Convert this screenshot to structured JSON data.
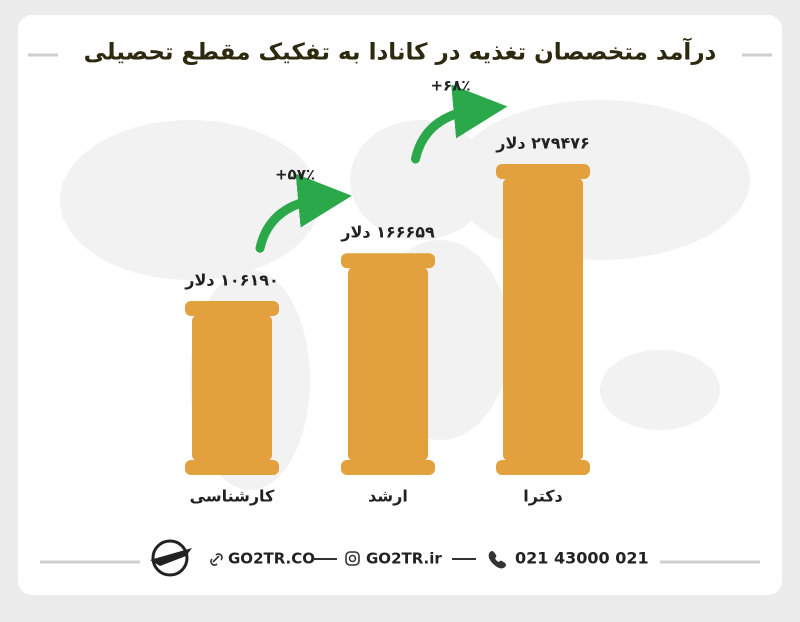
{
  "chart_data": {
    "type": "bar",
    "title": "درآمد متخصصان تغذیه در کانادا به تفکیک مقطع تحصیلی",
    "categories": [
      "کارشناسی",
      "ارشد",
      "دکترا"
    ],
    "values": [
      106190,
      166659,
      279476
    ],
    "value_labels": [
      "۱۰۶۱۹۰ دلار",
      "۱۶۶۶۵۹ دلار",
      "۲۷۹۴۷۶ دلار"
    ],
    "color": "#e2a13c",
    "annotations": [
      "+۵۷٪",
      "+۶۸٪"
    ],
    "annotation_color": "#2aa84a"
  },
  "footer": {
    "website": "GO2TR.CO",
    "instagram": "GO2TR.ir",
    "phone": "021 43000 021"
  }
}
